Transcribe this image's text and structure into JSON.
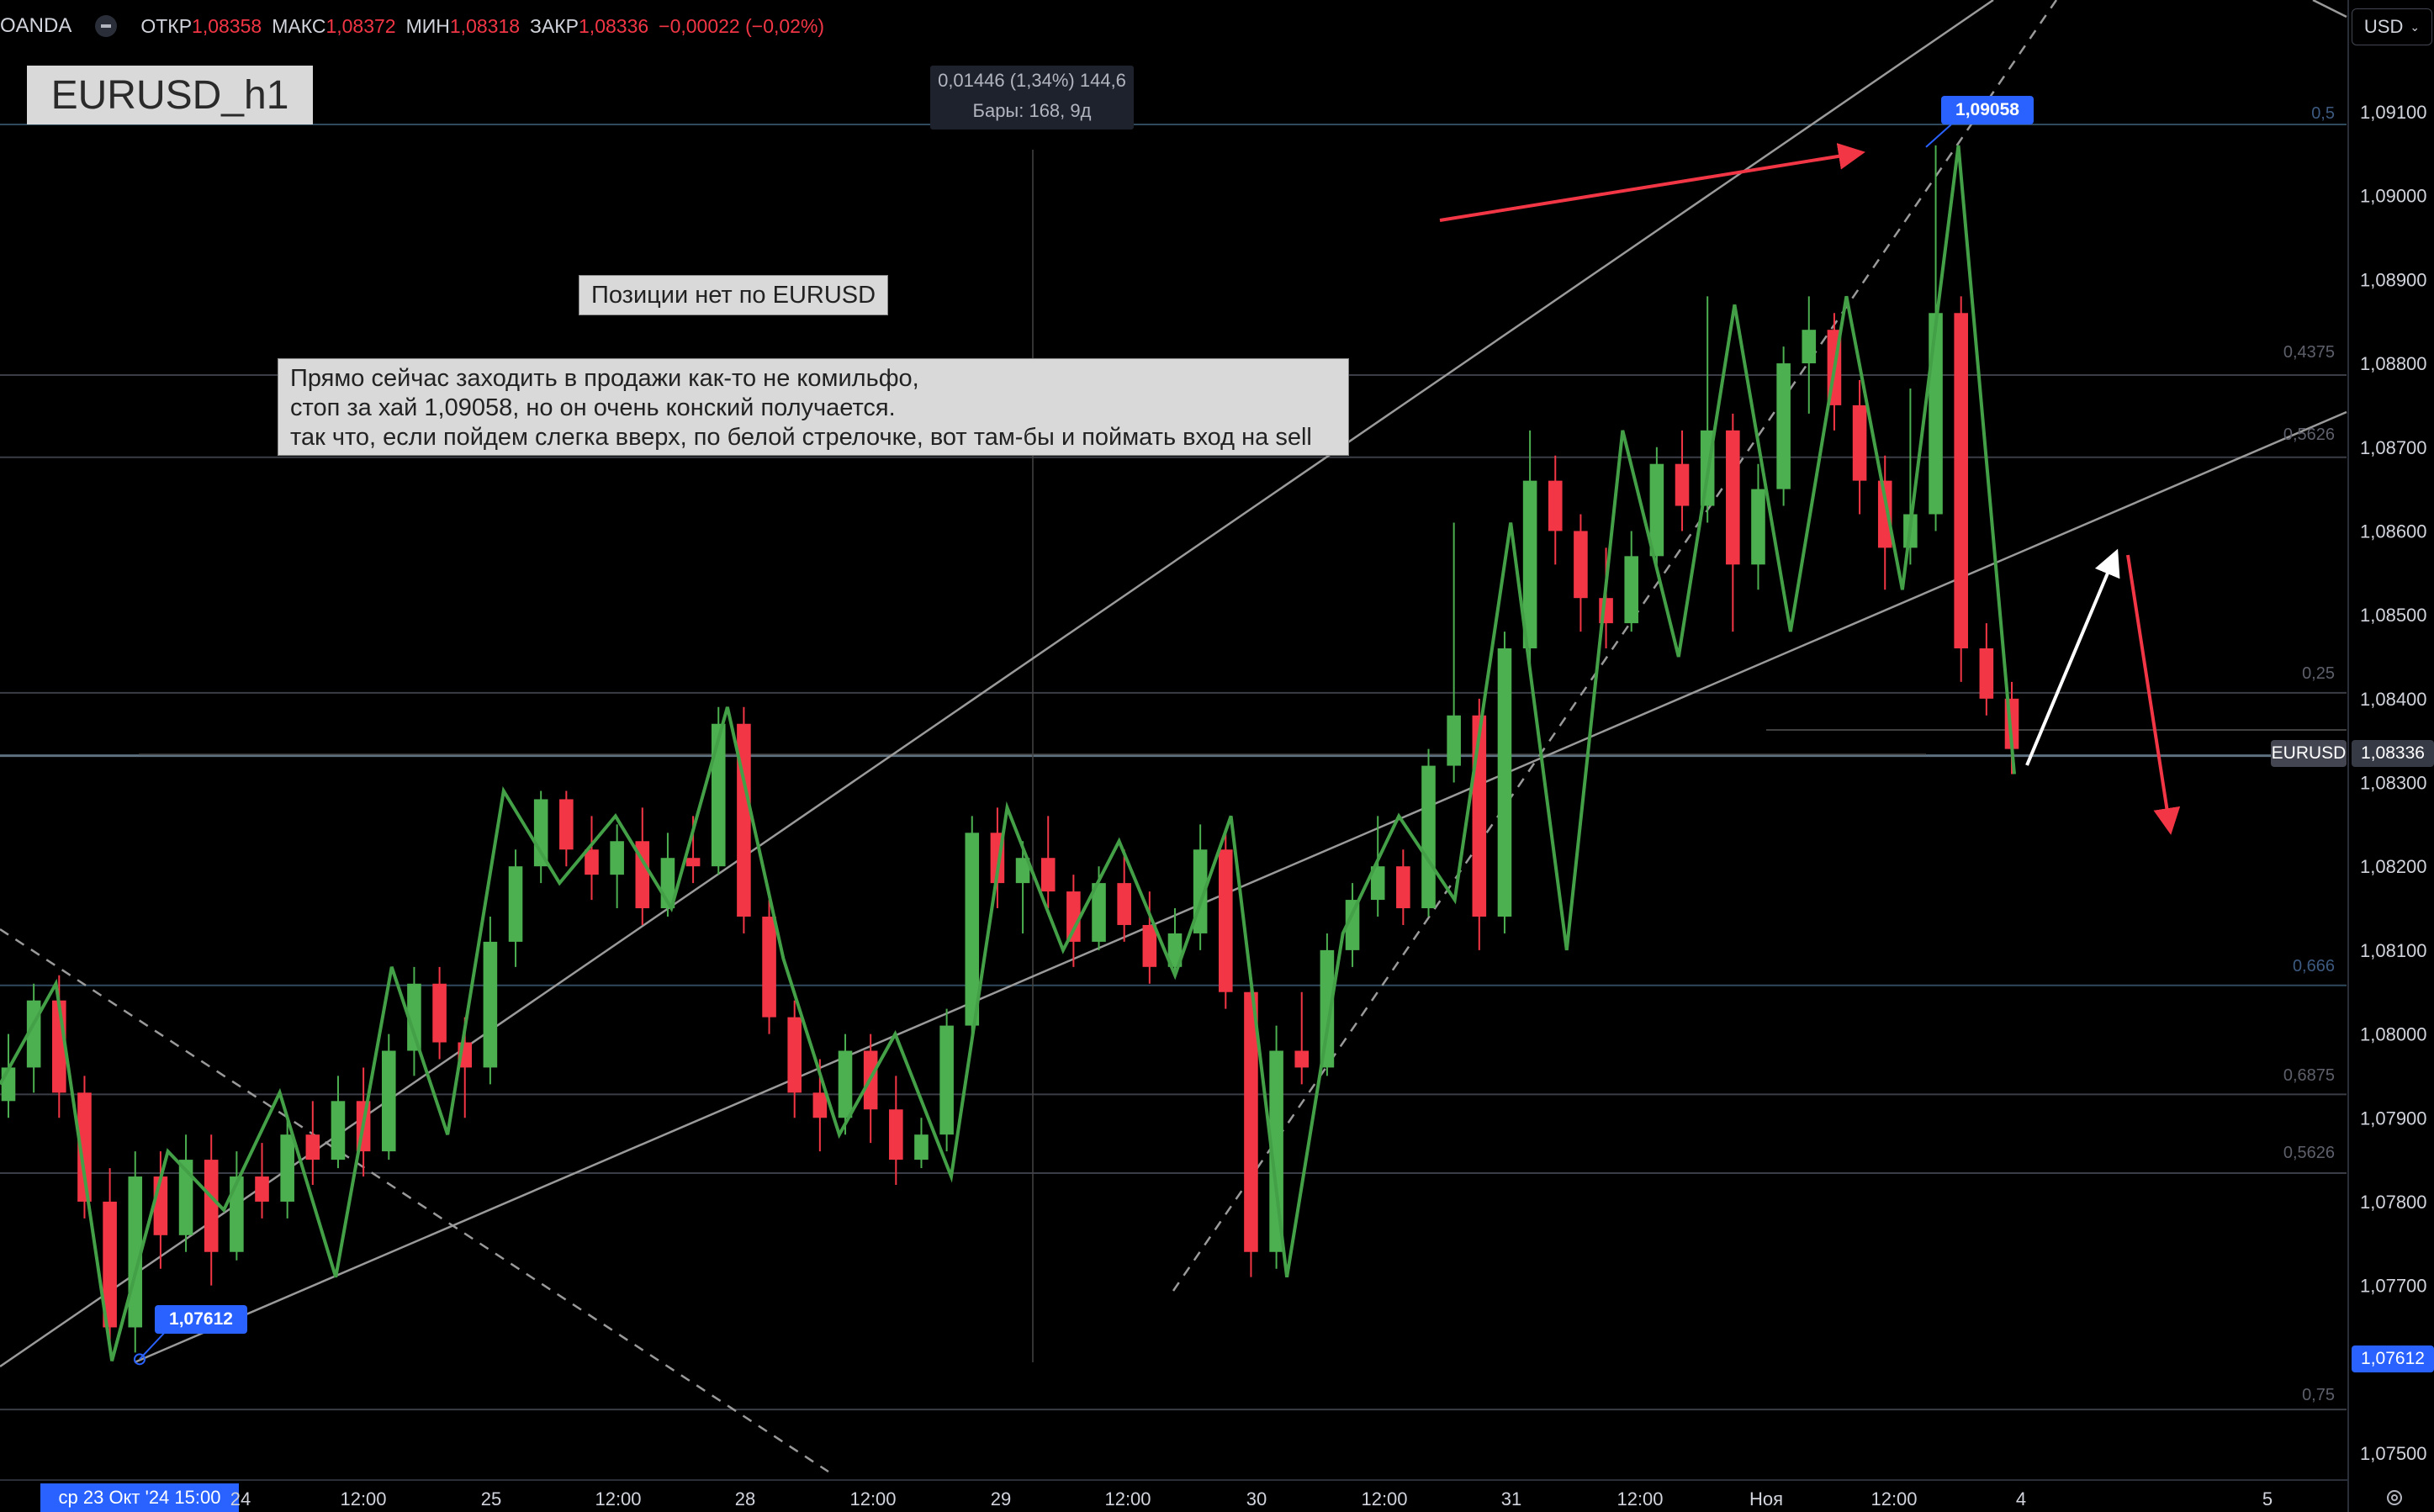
{
  "header": {
    "broker": "OANDA",
    "open_label": "ОТКР",
    "open_value": "1,08358",
    "high_label": "МАКС",
    "high_value": "1,08372",
    "low_label": "МИН",
    "low_value": "1,08318",
    "close_label": "ЗАКР",
    "close_value": "1,08336",
    "change": "−0,00022 (−0,02%)"
  },
  "currency_button": "USD",
  "title": "EURUSD_h1",
  "measure": {
    "line1": "0,01446 (1,34%) 144,6",
    "line2": "Бары: 168, 9д"
  },
  "notes": {
    "small": "Позиции нет по EURUSD",
    "big_line1": "Прямо сейчас заходить в продажи как-то не комильфо,",
    "big_line2": "стоп за хай 1,09058, но он очень конский получается.",
    "big_line3": "так что, если пойдем слегка вверх, по белой стрелочке, вот там-бы и поймать вход на sell"
  },
  "tags": {
    "high": "1,09058",
    "low": "1,07612",
    "symbol": "EURUSD",
    "last": "1,08336",
    "low_axis": "1,07612"
  },
  "fib_labels": [
    "0,5",
    "0,4375",
    "0,5626",
    "0,25",
    "0,666",
    "0,6875",
    "0,5626",
    "0,75"
  ],
  "time_axis": {
    "current": "ср 23 Окт '24   15:00",
    "labels": [
      "24",
      "12:00",
      "25",
      "12:00",
      "28",
      "12:00",
      "29",
      "12:00",
      "30",
      "12:00",
      "31",
      "12:00",
      "Ноя",
      "12:00",
      "4",
      "5"
    ]
  },
  "colors": {
    "up": "#4caf50",
    "down": "#f23645",
    "zigzag": "#43a047",
    "arrow_red": "#f23645",
    "arrow_white": "#ffffff",
    "accent": "#2962ff"
  },
  "chart_data": {
    "type": "candlestick",
    "title": "EURUSD_h1",
    "yaxis_labels": [
      "1,09100",
      "1,09000",
      "1,08900",
      "1,08800",
      "1,08700",
      "1,08600",
      "1,08500",
      "1,08400",
      "1,08300",
      "1,08200",
      "1,08100",
      "1,08000",
      "1,07900",
      "1,07800",
      "1,07700",
      "1,07500"
    ],
    "ylim": [
      1.0745,
      1.0918
    ],
    "last_price": 1.08336,
    "swing_high": 1.09058,
    "swing_low": 1.07612,
    "fib_levels": [
      {
        "label": "0,5",
        "price": 1.09085
      },
      {
        "label": "0,4375",
        "price": 1.08786
      },
      {
        "label": "0,5626",
        "price": 1.08688
      },
      {
        "label": "0,25",
        "price": 1.08407
      },
      {
        "label": "0,666",
        "price": 1.08058
      },
      {
        "label": "0,6875",
        "price": 1.07928
      },
      {
        "label": "0,5626",
        "price": 1.07834
      },
      {
        "label": "0,75",
        "price": 1.07552
      }
    ],
    "zigzag_prices": [
      1.0794,
      1.0806,
      1.0761,
      1.0786,
      1.0779,
      1.0793,
      1.0771,
      1.0808,
      1.0788,
      1.0829,
      1.0818,
      1.0826,
      1.0815,
      1.0839,
      1.0809,
      1.0788,
      1.08,
      1.0783,
      1.0827,
      1.081,
      1.0823,
      1.0807,
      1.0826,
      1.0771,
      1.0812,
      1.0826,
      1.0816,
      1.0861,
      1.081,
      1.0872,
      1.0845,
      1.0887,
      1.0848,
      1.0888,
      1.0853,
      1.0906,
      1.0831
    ],
    "candles": [
      {
        "o": 1.0792,
        "h": 1.08,
        "l": 1.079,
        "c": 1.0796
      },
      {
        "o": 1.0796,
        "h": 1.0806,
        "l": 1.0793,
        "c": 1.0804
      },
      {
        "o": 1.0804,
        "h": 1.0807,
        "l": 1.079,
        "c": 1.0793
      },
      {
        "o": 1.0793,
        "h": 1.0795,
        "l": 1.0778,
        "c": 1.078
      },
      {
        "o": 1.078,
        "h": 1.0784,
        "l": 1.0762,
        "c": 1.0765
      },
      {
        "o": 1.0765,
        "h": 1.0786,
        "l": 1.0762,
        "c": 1.0783
      },
      {
        "o": 1.0783,
        "h": 1.0786,
        "l": 1.0772,
        "c": 1.0776
      },
      {
        "o": 1.0776,
        "h": 1.0788,
        "l": 1.0774,
        "c": 1.0785
      },
      {
        "o": 1.0785,
        "h": 1.0788,
        "l": 1.077,
        "c": 1.0774
      },
      {
        "o": 1.0774,
        "h": 1.0786,
        "l": 1.0773,
        "c": 1.0783
      },
      {
        "o": 1.0783,
        "h": 1.0787,
        "l": 1.0778,
        "c": 1.078
      },
      {
        "o": 1.078,
        "h": 1.079,
        "l": 1.0778,
        "c": 1.0788
      },
      {
        "o": 1.0788,
        "h": 1.0792,
        "l": 1.0782,
        "c": 1.0785
      },
      {
        "o": 1.0785,
        "h": 1.0795,
        "l": 1.0784,
        "c": 1.0792
      },
      {
        "o": 1.0792,
        "h": 1.0796,
        "l": 1.0783,
        "c": 1.0786
      },
      {
        "o": 1.0786,
        "h": 1.08,
        "l": 1.0785,
        "c": 1.0798
      },
      {
        "o": 1.0798,
        "h": 1.0808,
        "l": 1.0795,
        "c": 1.0806
      },
      {
        "o": 1.0806,
        "h": 1.0808,
        "l": 1.0797,
        "c": 1.0799
      },
      {
        "o": 1.0799,
        "h": 1.0802,
        "l": 1.079,
        "c": 1.0796
      },
      {
        "o": 1.0796,
        "h": 1.0814,
        "l": 1.0794,
        "c": 1.0811
      },
      {
        "o": 1.0811,
        "h": 1.0822,
        "l": 1.0808,
        "c": 1.082
      },
      {
        "o": 1.082,
        "h": 1.0829,
        "l": 1.0818,
        "c": 1.0828
      },
      {
        "o": 1.0828,
        "h": 1.0829,
        "l": 1.082,
        "c": 1.0822
      },
      {
        "o": 1.0822,
        "h": 1.0826,
        "l": 1.0816,
        "c": 1.0819
      },
      {
        "o": 1.0819,
        "h": 1.0825,
        "l": 1.0815,
        "c": 1.0823
      },
      {
        "o": 1.0823,
        "h": 1.0827,
        "l": 1.0813,
        "c": 1.0815
      },
      {
        "o": 1.0815,
        "h": 1.0824,
        "l": 1.0814,
        "c": 1.0821
      },
      {
        "o": 1.0821,
        "h": 1.0826,
        "l": 1.0818,
        "c": 1.082
      },
      {
        "o": 1.082,
        "h": 1.0839,
        "l": 1.0819,
        "c": 1.0837
      },
      {
        "o": 1.0837,
        "h": 1.0839,
        "l": 1.0812,
        "c": 1.0814
      },
      {
        "o": 1.0814,
        "h": 1.0816,
        "l": 1.08,
        "c": 1.0802
      },
      {
        "o": 1.0802,
        "h": 1.0804,
        "l": 1.079,
        "c": 1.0793
      },
      {
        "o": 1.0793,
        "h": 1.0797,
        "l": 1.0786,
        "c": 1.079
      },
      {
        "o": 1.079,
        "h": 1.08,
        "l": 1.0788,
        "c": 1.0798
      },
      {
        "o": 1.0798,
        "h": 1.08,
        "l": 1.0787,
        "c": 1.0791
      },
      {
        "o": 1.0791,
        "h": 1.0795,
        "l": 1.0782,
        "c": 1.0785
      },
      {
        "o": 1.0785,
        "h": 1.079,
        "l": 1.0784,
        "c": 1.0788
      },
      {
        "o": 1.0788,
        "h": 1.0803,
        "l": 1.0786,
        "c": 1.0801
      },
      {
        "o": 1.0801,
        "h": 1.0826,
        "l": 1.0799,
        "c": 1.0824
      },
      {
        "o": 1.0824,
        "h": 1.0827,
        "l": 1.0815,
        "c": 1.0818
      },
      {
        "o": 1.0818,
        "h": 1.0823,
        "l": 1.0812,
        "c": 1.0821
      },
      {
        "o": 1.0821,
        "h": 1.0826,
        "l": 1.0815,
        "c": 1.0817
      },
      {
        "o": 1.0817,
        "h": 1.0819,
        "l": 1.0808,
        "c": 1.0811
      },
      {
        "o": 1.0811,
        "h": 1.082,
        "l": 1.081,
        "c": 1.0818
      },
      {
        "o": 1.0818,
        "h": 1.0822,
        "l": 1.0811,
        "c": 1.0813
      },
      {
        "o": 1.0813,
        "h": 1.0817,
        "l": 1.0806,
        "c": 1.0808
      },
      {
        "o": 1.0808,
        "h": 1.0815,
        "l": 1.0807,
        "c": 1.0812
      },
      {
        "o": 1.0812,
        "h": 1.0825,
        "l": 1.081,
        "c": 1.0822
      },
      {
        "o": 1.0822,
        "h": 1.0824,
        "l": 1.0803,
        "c": 1.0805
      },
      {
        "o": 1.0805,
        "h": 1.0806,
        "l": 1.0771,
        "c": 1.0774
      },
      {
        "o": 1.0774,
        "h": 1.0801,
        "l": 1.0772,
        "c": 1.0798
      },
      {
        "o": 1.0798,
        "h": 1.0805,
        "l": 1.0794,
        "c": 1.0796
      },
      {
        "o": 1.0796,
        "h": 1.0812,
        "l": 1.0795,
        "c": 1.081
      },
      {
        "o": 1.081,
        "h": 1.0818,
        "l": 1.0808,
        "c": 1.0816
      },
      {
        "o": 1.0816,
        "h": 1.0826,
        "l": 1.0814,
        "c": 1.082
      },
      {
        "o": 1.082,
        "h": 1.0822,
        "l": 1.0813,
        "c": 1.0815
      },
      {
        "o": 1.0815,
        "h": 1.0834,
        "l": 1.0814,
        "c": 1.0832
      },
      {
        "o": 1.0832,
        "h": 1.0861,
        "l": 1.083,
        "c": 1.0838
      },
      {
        "o": 1.0838,
        "h": 1.084,
        "l": 1.081,
        "c": 1.0814
      },
      {
        "o": 1.0814,
        "h": 1.0848,
        "l": 1.0812,
        "c": 1.0846
      },
      {
        "o": 1.0846,
        "h": 1.0872,
        "l": 1.0844,
        "c": 1.0866
      },
      {
        "o": 1.0866,
        "h": 1.0869,
        "l": 1.0856,
        "c": 1.086
      },
      {
        "o": 1.086,
        "h": 1.0862,
        "l": 1.0848,
        "c": 1.0852
      },
      {
        "o": 1.0852,
        "h": 1.0858,
        "l": 1.0846,
        "c": 1.0849
      },
      {
        "o": 1.0849,
        "h": 1.086,
        "l": 1.0848,
        "c": 1.0857
      },
      {
        "o": 1.0857,
        "h": 1.087,
        "l": 1.0856,
        "c": 1.0868
      },
      {
        "o": 1.0868,
        "h": 1.0872,
        "l": 1.086,
        "c": 1.0863
      },
      {
        "o": 1.0863,
        "h": 1.0888,
        "l": 1.0861,
        "c": 1.0872
      },
      {
        "o": 1.0872,
        "h": 1.0874,
        "l": 1.0848,
        "c": 1.0856
      },
      {
        "o": 1.0856,
        "h": 1.0868,
        "l": 1.0853,
        "c": 1.0865
      },
      {
        "o": 1.0865,
        "h": 1.0882,
        "l": 1.0863,
        "c": 1.088
      },
      {
        "o": 1.088,
        "h": 1.0888,
        "l": 1.0874,
        "c": 1.0884
      },
      {
        "o": 1.0884,
        "h": 1.0886,
        "l": 1.0872,
        "c": 1.0875
      },
      {
        "o": 1.0875,
        "h": 1.0878,
        "l": 1.0862,
        "c": 1.0866
      },
      {
        "o": 1.0866,
        "h": 1.0869,
        "l": 1.0853,
        "c": 1.0858
      },
      {
        "o": 1.0858,
        "h": 1.0877,
        "l": 1.0856,
        "c": 1.0862
      },
      {
        "o": 1.0862,
        "h": 1.0906,
        "l": 1.086,
        "c": 1.0886
      },
      {
        "o": 1.0886,
        "h": 1.0888,
        "l": 1.0842,
        "c": 1.0846
      },
      {
        "o": 1.0846,
        "h": 1.0849,
        "l": 1.0838,
        "c": 1.084
      },
      {
        "o": 1.084,
        "h": 1.0842,
        "l": 1.0831,
        "c": 1.0834
      }
    ]
  }
}
